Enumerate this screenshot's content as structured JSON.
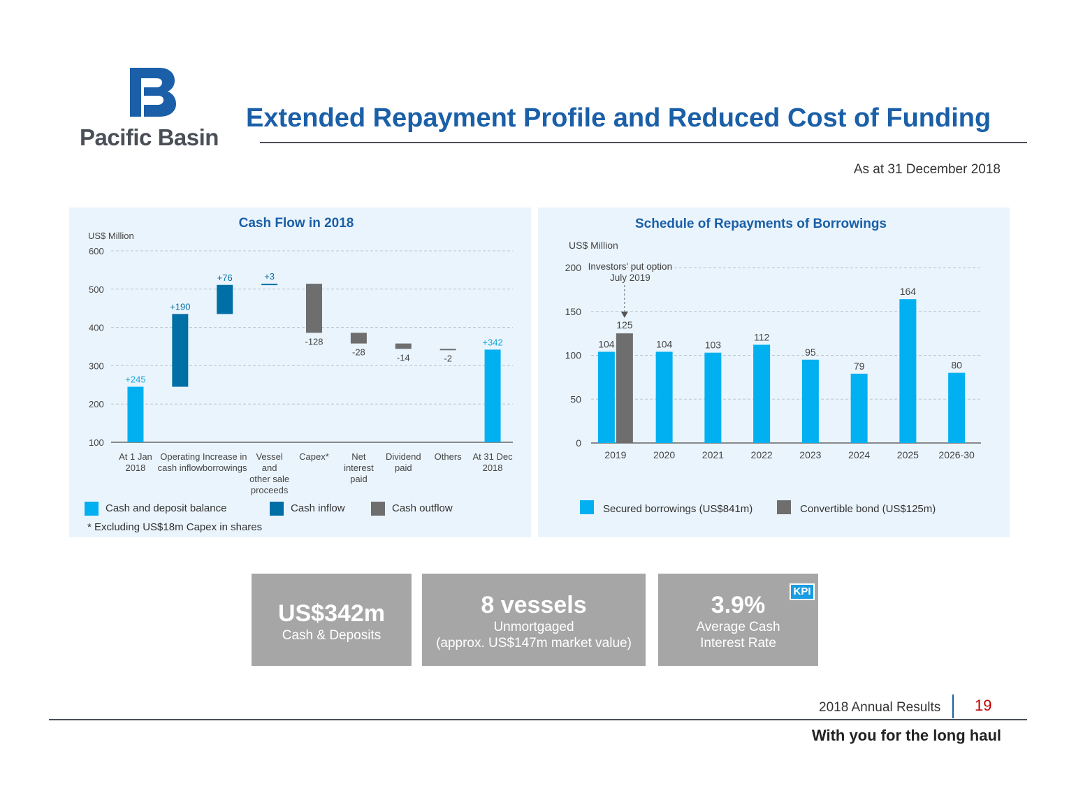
{
  "header": {
    "logo_text": "Pacific Basin",
    "title": "Extended Repayment Profile and Reduced Cost of Funding",
    "as_at": "As at 31 December 2018"
  },
  "colors": {
    "brand_blue": "#1a5fa8",
    "cash_balance": "#00b0f0",
    "cash_inflow": "#006fa6",
    "cash_outflow": "#6e6e6e",
    "secured": "#00b0f0",
    "convertible": "#6e6e6e",
    "panel_bg": "#eaf4fc",
    "kpi_bg": "#a6a6a6"
  },
  "chart_data": [
    {
      "type": "bar",
      "subtype": "waterfall",
      "title": "Cash Flow in 2018",
      "ylabel": "US$ Million",
      "ylim": [
        100,
        600
      ],
      "yticks": [
        100,
        200,
        300,
        400,
        500,
        600
      ],
      "grid": true,
      "categories": [
        [
          "At 1 Jan",
          "2018"
        ],
        [
          "Operating",
          "cash inflow"
        ],
        [
          "Increase in",
          "borrowings"
        ],
        [
          "Vessel",
          "and",
          "other sale",
          "proceeds"
        ],
        [
          "Capex*"
        ],
        [
          "Net",
          "interest",
          "paid"
        ],
        [
          "Dividend",
          "paid"
        ],
        [
          "Others"
        ],
        [
          "At 31 Dec",
          "2018"
        ]
      ],
      "bars": [
        {
          "kind": "balance",
          "start": 100,
          "end": 245,
          "label": "+245"
        },
        {
          "kind": "inflow",
          "start": 245,
          "end": 435,
          "label": "+190"
        },
        {
          "kind": "inflow",
          "start": 435,
          "end": 511,
          "label": "+76"
        },
        {
          "kind": "inflow",
          "start": 511,
          "end": 514,
          "label": "+3"
        },
        {
          "kind": "outflow",
          "start": 514,
          "end": 386,
          "label": "-128"
        },
        {
          "kind": "outflow",
          "start": 386,
          "end": 358,
          "label": "-28"
        },
        {
          "kind": "outflow",
          "start": 358,
          "end": 344,
          "label": "-14"
        },
        {
          "kind": "outflow",
          "start": 344,
          "end": 342,
          "label": "-2"
        },
        {
          "kind": "balance",
          "start": 100,
          "end": 342,
          "label": "+342"
        }
      ],
      "legend": [
        {
          "key": "balance",
          "label": "Cash and deposit balance"
        },
        {
          "key": "inflow",
          "label": "Cash inflow"
        },
        {
          "key": "outflow",
          "label": "Cash outflow"
        }
      ],
      "legend_position": "bottom",
      "footnote": "* Excluding US$18m Capex in shares"
    },
    {
      "type": "bar",
      "title": "Schedule of Repayments of Borrowings",
      "ylabel": "US$ Million",
      "ylim": [
        0,
        200
      ],
      "yticks": [
        0,
        50,
        100,
        150,
        200
      ],
      "grid": true,
      "categories": [
        "2019",
        "2020",
        "2021",
        "2022",
        "2023",
        "2024",
        "2025",
        "2026-30"
      ],
      "series": [
        {
          "name": "Secured borrowings (US$841m)",
          "key": "secured",
          "values": [
            104,
            104,
            103,
            112,
            95,
            79,
            164,
            80
          ]
        },
        {
          "name": "Convertible bond (US$125m)",
          "key": "convertible",
          "values": [
            125,
            null,
            null,
            null,
            null,
            null,
            null,
            null
          ]
        }
      ],
      "annotation": {
        "lines": [
          "Investors' put option",
          "July 2019"
        ],
        "category": "2019"
      },
      "legend_position": "bottom"
    }
  ],
  "kpis": [
    {
      "big": "US$342m",
      "sub": [
        "Cash & Deposits"
      ]
    },
    {
      "big": "8 vessels",
      "sub": [
        "Unmortgaged",
        "(approx. US$147m market value)"
      ]
    },
    {
      "big": "3.9%",
      "sub": [
        "Average Cash",
        "Interest Rate"
      ],
      "badge": "KPI"
    }
  ],
  "footer": {
    "label": "2018 Annual Results",
    "page_number": "19",
    "tagline": "With you for the long haul"
  }
}
